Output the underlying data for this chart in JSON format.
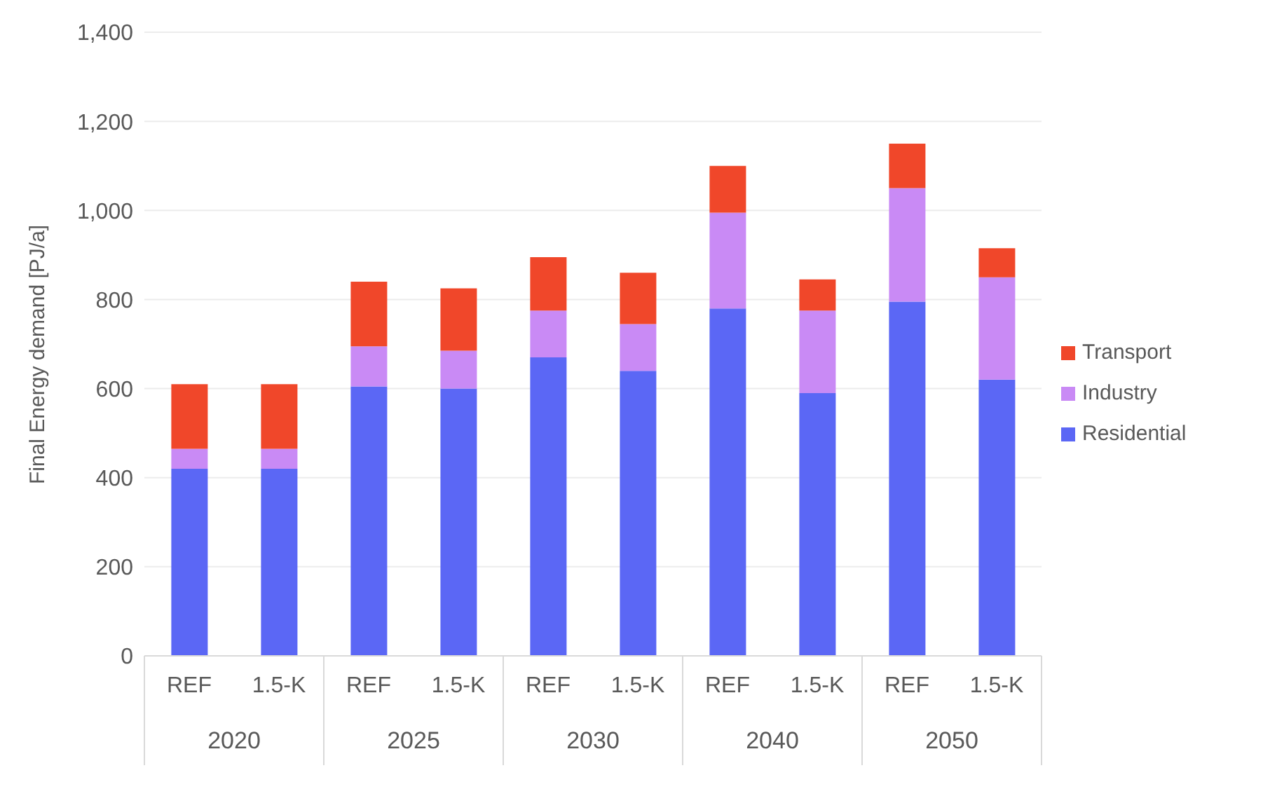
{
  "chart_data": {
    "type": "bar",
    "stacked": true,
    "ylabel": "Final Energy demand [PJ/a]",
    "categories": [
      "REF",
      "1.5-K",
      "REF",
      "1.5-K",
      "REF",
      "1.5-K",
      "REF",
      "1.5-K",
      "REF",
      "1.5-K"
    ],
    "annotations": [
      "2020",
      "2025",
      "2030",
      "2040",
      "2050"
    ],
    "series": [
      {
        "name": "Residential",
        "color": "#5b67f5",
        "values": [
          420,
          420,
          605,
          600,
          670,
          640,
          780,
          590,
          795,
          620
        ]
      },
      {
        "name": "Industry",
        "color": "#c98af5",
        "values": [
          45,
          45,
          90,
          85,
          105,
          105,
          215,
          185,
          255,
          230
        ]
      },
      {
        "name": "Transport",
        "color": "#f0472a",
        "values": [
          145,
          145,
          145,
          140,
          120,
          115,
          105,
          70,
          100,
          65
        ]
      }
    ],
    "ylim": [
      0,
      1400
    ],
    "yticks": [
      0,
      200,
      400,
      600,
      800,
      {
        "value": 1000,
        "label": "1,000"
      },
      {
        "value": 1200,
        "label": "1,200"
      },
      {
        "value": 1400,
        "label": "1,400"
      }
    ],
    "grid": "y",
    "legend": "right"
  }
}
